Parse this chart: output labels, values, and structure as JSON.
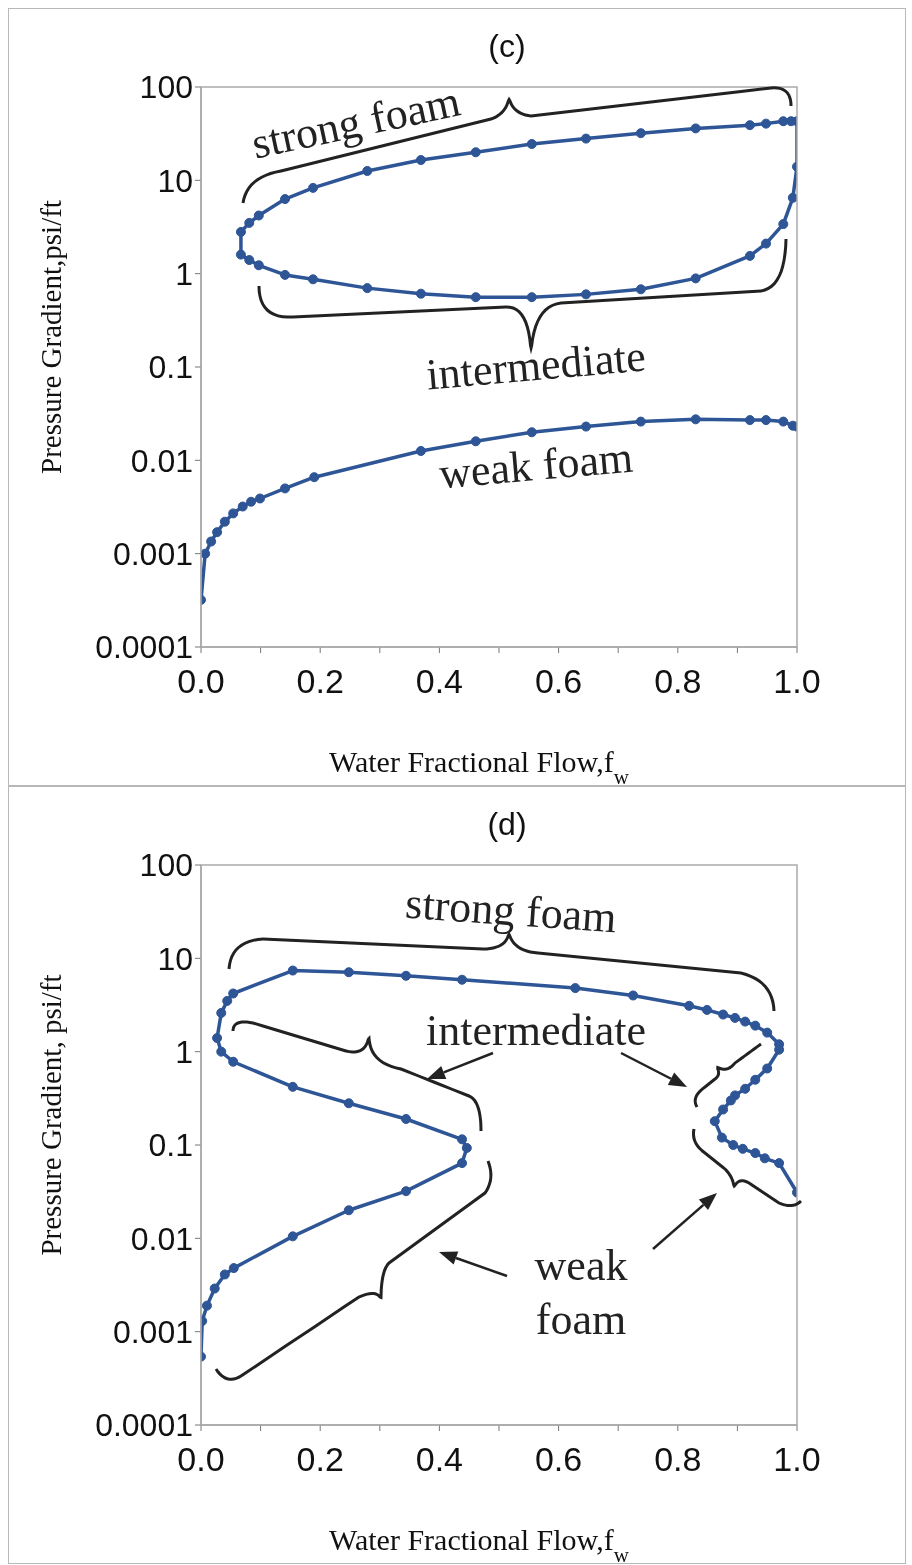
{
  "chart_data": [
    {
      "type": "line",
      "title": "(c)",
      "xlabel": "Water Fractional Flow,f$_{w}$",
      "ylabel": "Pressure Gradient,psi/ft",
      "xlim": [
        0,
        1
      ],
      "xticks": [
        {
          "value": 0,
          "label": "0.0"
        },
        {
          "value": 0.1,
          "label": null
        },
        {
          "value": 0.2,
          "label": "0.2"
        },
        {
          "value": 0.3,
          "label": null
        },
        {
          "value": 0.4,
          "label": "0.4"
        },
        {
          "value": 0.5,
          "label": null
        },
        {
          "value": 0.6,
          "label": "0.6"
        },
        {
          "value": 0.7,
          "label": null
        },
        {
          "value": 0.8,
          "label": "0.8"
        },
        {
          "value": 0.9,
          "label": null
        },
        {
          "value": 1,
          "label": "1.0"
        }
      ],
      "ylim": [
        0.0001,
        100
      ],
      "yticks": [
        0.0001,
        0.001,
        0.01,
        0.1,
        1,
        10,
        100
      ],
      "log": "y",
      "grid": false,
      "marker": "circle",
      "line_style": "solid",
      "series": [
        {
          "color": "#2e5596",
          "x": [
            0.99,
            0.977,
            0.948,
            0.921,
            0.83,
            0.738,
            0.646,
            0.555,
            0.461,
            0.369,
            0.279,
            0.188,
            0.141,
            0.097,
            0.081,
            0.067,
            0.067,
            0.081,
            0.097,
            0.141,
            0.188,
            0.279,
            0.369,
            0.461,
            0.555,
            0.646,
            0.738,
            0.83,
            0.921,
            0.948,
            0.977,
            0.993,
            1.0,
            1.0
          ],
          "values": [
            43,
            43,
            40.5,
            39,
            36,
            32,
            28,
            24.5,
            20,
            16.5,
            12.6,
            8.3,
            6.3,
            4.2,
            3.5,
            2.8,
            1.6,
            1.4,
            1.23,
            0.97,
            0.87,
            0.7,
            0.61,
            0.56,
            0.56,
            0.6,
            0.68,
            0.89,
            1.55,
            2.1,
            3.4,
            6.5,
            14,
            43
          ]
        },
        {
          "color": "#2e5596",
          "x": [
            0,
            0.007,
            0.017,
            0.027,
            0.04,
            0.054,
            0.07,
            0.084,
            0.099,
            0.141,
            0.19,
            0.369,
            0.461,
            0.555,
            0.646,
            0.738,
            0.83,
            0.921,
            0.948,
            0.977,
            0.993,
            1.0
          ],
          "values": [
            0.00032,
            0.001,
            0.00135,
            0.0017,
            0.0022,
            0.0027,
            0.0032,
            0.0036,
            0.0039,
            0.005,
            0.0066,
            0.0126,
            0.016,
            0.02,
            0.023,
            0.026,
            0.0275,
            0.027,
            0.027,
            0.026,
            0.0235,
            0.023
          ]
        }
      ],
      "annotations": [
        "strong foam",
        "intermediate",
        "weak foam"
      ]
    },
    {
      "type": "line",
      "title": "(d)",
      "xlabel": "Water Fractional Flow,f$_{w}$",
      "ylabel": "Pressure Gradient, psi/ft",
      "xlim": [
        0,
        1
      ],
      "xticks": [
        {
          "value": 0,
          "label": "0.0"
        },
        {
          "value": 0.1,
          "label": null
        },
        {
          "value": 0.2,
          "label": "0.2"
        },
        {
          "value": 0.3,
          "label": null
        },
        {
          "value": 0.4,
          "label": "0.4"
        },
        {
          "value": 0.5,
          "label": null
        },
        {
          "value": 0.6,
          "label": "0.6"
        },
        {
          "value": 0.7,
          "label": null
        },
        {
          "value": 0.8,
          "label": "0.8"
        },
        {
          "value": 0.9,
          "label": null
        },
        {
          "value": 1,
          "label": "1.0"
        }
      ],
      "ylim": [
        0.0001,
        100
      ],
      "yticks": [
        0.0001,
        0.001,
        0.01,
        0.1,
        1,
        10,
        100
      ],
      "log": "y",
      "grid": false,
      "marker": "circle",
      "line_style": "solid",
      "series": [
        {
          "color": "#2e5596",
          "x": [
            0,
            0.002,
            0.01,
            0.023,
            0.04,
            0.055,
            0.154,
            0.248,
            0.344,
            0.438,
            0.446,
            0.438,
            0.344,
            0.248,
            0.154,
            0.054,
            0.034,
            0.027,
            0.034,
            0.044,
            0.054,
            0.154,
            0.248,
            0.344,
            0.438,
            0.628,
            0.725,
            0.819,
            0.849,
            0.876,
            0.896,
            0.913,
            0.93,
            0.95,
            0.97,
            0.97,
            0.95,
            0.93,
            0.913,
            0.896,
            0.889,
            0.876,
            0.862,
            0.874,
            0.893,
            0.909,
            0.93,
            0.946,
            0.97,
            1.0
          ],
          "values": [
            0.00054,
            0.0013,
            0.0019,
            0.0029,
            0.0041,
            0.0048,
            0.0105,
            0.02,
            0.032,
            0.064,
            0.093,
            0.115,
            0.19,
            0.28,
            0.42,
            0.78,
            1.0,
            1.4,
            2.6,
            3.5,
            4.2,
            7.4,
            7.1,
            6.5,
            5.9,
            4.8,
            4.0,
            3.1,
            2.8,
            2.5,
            2.3,
            2.1,
            1.9,
            1.6,
            1.2,
            1.05,
            0.66,
            0.5,
            0.4,
            0.34,
            0.3,
            0.24,
            0.18,
            0.12,
            0.1,
            0.091,
            0.082,
            0.072,
            0.064,
            0.031
          ]
        }
      ],
      "annotations": [
        "strong foam",
        "intermediate",
        "weak\nfoam"
      ]
    }
  ]
}
